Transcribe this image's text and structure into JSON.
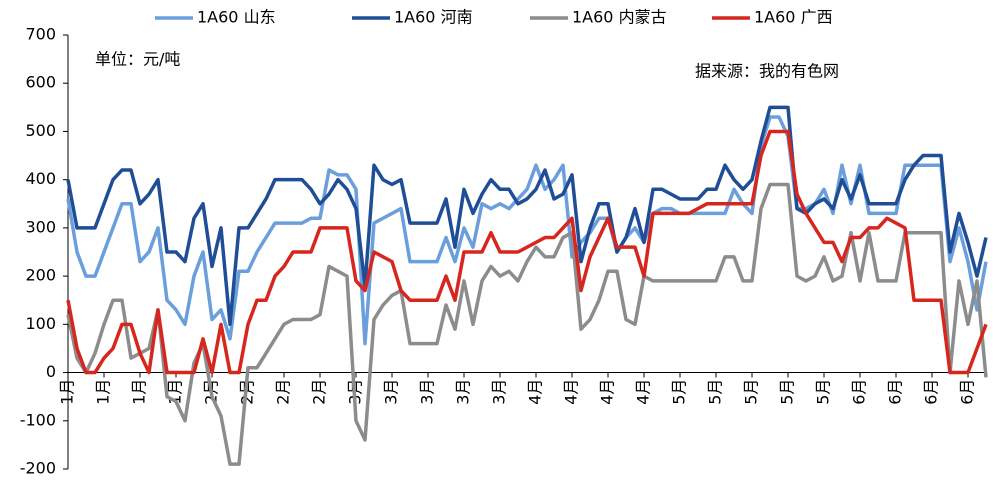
{
  "chart_data": {
    "type": "line",
    "annotations": [
      "单位：元/吨",
      "据来源：我的有色网"
    ],
    "categories": [
      "1月",
      null,
      null,
      null,
      "1月",
      null,
      null,
      null,
      "1月",
      null,
      null,
      null,
      "1月",
      null,
      null,
      null,
      "2月",
      null,
      null,
      null,
      "2月",
      null,
      null,
      null,
      "2月",
      null,
      null,
      null,
      "2月",
      null,
      null,
      null,
      "3月",
      null,
      null,
      null,
      "3月",
      null,
      null,
      null,
      "3月",
      null,
      null,
      null,
      "3月",
      null,
      null,
      null,
      "3月",
      null,
      null,
      null,
      "4月",
      null,
      null,
      null,
      "4月",
      null,
      null,
      null,
      "4月",
      null,
      null,
      null,
      "4月",
      null,
      null,
      null,
      "5月",
      null,
      null,
      null,
      "5月",
      null,
      null,
      null,
      "5月",
      null,
      null,
      null,
      "5月",
      null,
      null,
      null,
      "5月",
      null,
      null,
      null,
      "6月",
      null,
      null,
      null,
      "6月",
      null,
      null,
      null,
      "6月",
      null,
      null,
      null,
      "6月",
      null,
      null
    ],
    "series": [
      {
        "name": "1A60 山东",
        "color": "#6a9fdc",
        "values": [
          360,
          250,
          200,
          200,
          250,
          300,
          350,
          350,
          230,
          250,
          300,
          150,
          130,
          100,
          200,
          250,
          110,
          130,
          70,
          210,
          210,
          250,
          280,
          310,
          310,
          310,
          310,
          320,
          320,
          420,
          410,
          410,
          380,
          60,
          310,
          320,
          330,
          340,
          230,
          230,
          230,
          230,
          280,
          230,
          300,
          260,
          350,
          340,
          350,
          340,
          360,
          380,
          430,
          380,
          400,
          430,
          240,
          270,
          290,
          320,
          320,
          250,
          280,
          300,
          270,
          330,
          340,
          340,
          330,
          330,
          330,
          330,
          330,
          330,
          380,
          350,
          330,
          470,
          530,
          530,
          490,
          340,
          340,
          350,
          380,
          330,
          430,
          350,
          430,
          330,
          330,
          330,
          330,
          430,
          430,
          430,
          430,
          430,
          230,
          300,
          230,
          130,
          230
        ]
      },
      {
        "name": "1A60 河南",
        "color": "#1f4e96",
        "values": [
          400,
          300,
          300,
          300,
          350,
          400,
          420,
          420,
          350,
          370,
          400,
          250,
          250,
          230,
          320,
          350,
          220,
          300,
          100,
          300,
          300,
          330,
          360,
          400,
          400,
          400,
          400,
          380,
          350,
          370,
          400,
          380,
          340,
          180,
          430,
          400,
          390,
          400,
          310,
          310,
          310,
          310,
          360,
          260,
          380,
          330,
          370,
          400,
          380,
          380,
          350,
          360,
          380,
          420,
          360,
          370,
          410,
          230,
          300,
          350,
          350,
          250,
          280,
          340,
          270,
          380,
          380,
          370,
          360,
          360,
          360,
          380,
          380,
          430,
          400,
          380,
          400,
          480,
          550,
          550,
          550,
          340,
          330,
          350,
          360,
          340,
          400,
          360,
          410,
          350,
          350,
          350,
          350,
          400,
          430,
          450,
          450,
          450,
          250,
          330,
          270,
          200,
          280
        ]
      },
      {
        "name": "1A60 内蒙古",
        "color": "#8c8c8c",
        "values": [
          120,
          30,
          0,
          40,
          100,
          150,
          150,
          30,
          40,
          50,
          130,
          -50,
          -60,
          -100,
          20,
          60,
          -50,
          -90,
          -190,
          -190,
          10,
          10,
          40,
          70,
          100,
          110,
          110,
          110,
          120,
          220,
          210,
          200,
          -100,
          -140,
          110,
          140,
          160,
          170,
          60,
          60,
          60,
          60,
          140,
          90,
          190,
          100,
          190,
          220,
          200,
          210,
          190,
          230,
          260,
          240,
          240,
          280,
          290,
          90,
          110,
          150,
          210,
          210,
          110,
          100,
          200,
          190,
          190,
          190,
          190,
          190,
          190,
          190,
          190,
          240,
          240,
          190,
          190,
          340,
          390,
          390,
          390,
          200,
          190,
          200,
          240,
          190,
          200,
          290,
          190,
          290,
          190,
          190,
          190,
          290,
          290,
          290,
          290,
          290,
          0,
          190,
          100,
          190,
          -10
        ]
      },
      {
        "name": "1A60 广西",
        "color": "#d7261e",
        "values": [
          150,
          50,
          0,
          0,
          30,
          50,
          100,
          100,
          40,
          0,
          130,
          0,
          0,
          0,
          0,
          70,
          0,
          100,
          0,
          0,
          100,
          150,
          150,
          200,
          220,
          250,
          250,
          250,
          300,
          300,
          300,
          300,
          190,
          170,
          250,
          240,
          230,
          170,
          150,
          150,
          150,
          150,
          200,
          150,
          250,
          250,
          250,
          290,
          250,
          250,
          250,
          260,
          270,
          280,
          280,
          300,
          320,
          170,
          240,
          280,
          320,
          260,
          260,
          260,
          200,
          330,
          330,
          330,
          330,
          330,
          340,
          350,
          350,
          350,
          350,
          350,
          350,
          450,
          500,
          500,
          500,
          370,
          330,
          300,
          270,
          270,
          230,
          280,
          280,
          300,
          300,
          320,
          310,
          300,
          150,
          150,
          150,
          150,
          0,
          0,
          0,
          50,
          100
        ]
      }
    ],
    "ylim": [
      -200,
      700
    ],
    "yticks": [
      -200,
      -100,
      0,
      100,
      200,
      300,
      400,
      500,
      600,
      700
    ],
    "legend": "top"
  }
}
